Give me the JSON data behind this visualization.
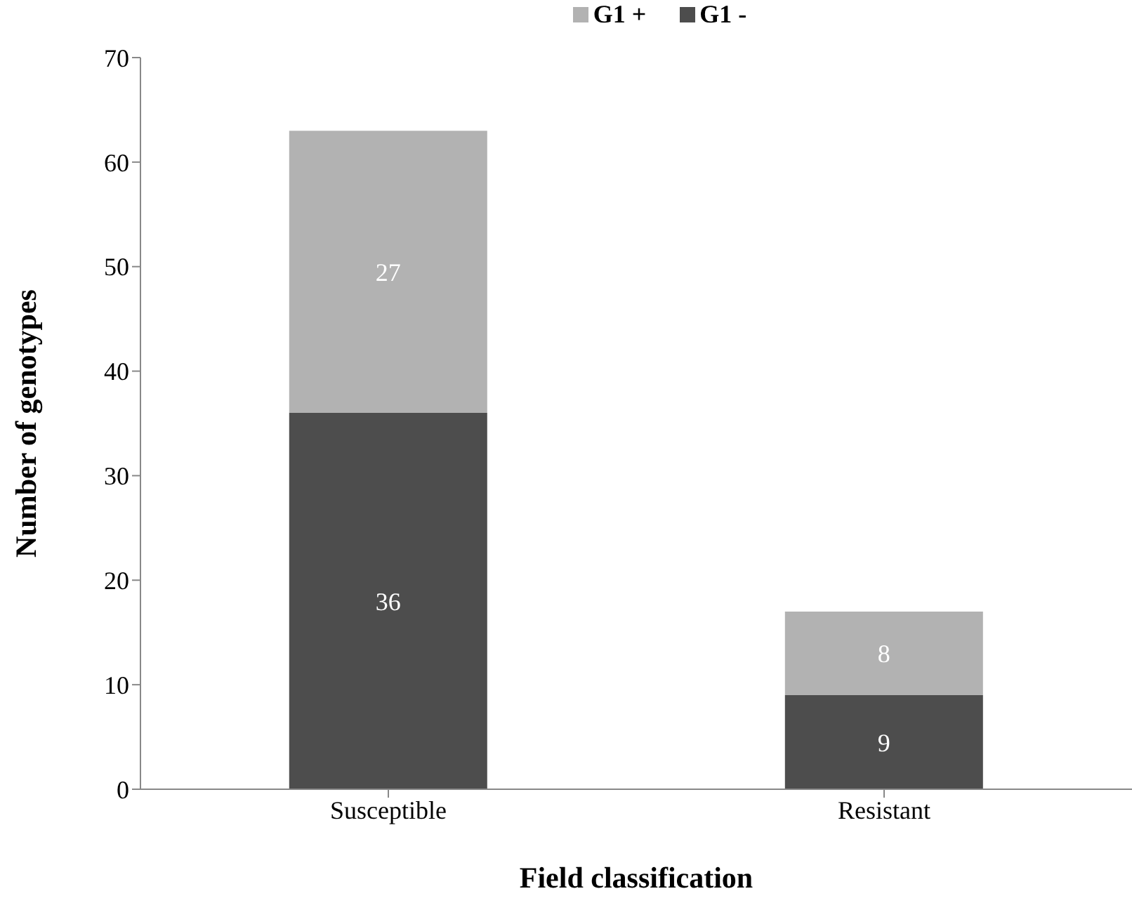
{
  "chart_data": {
    "type": "bar",
    "stacked": true,
    "xlabel": "Field classification",
    "ylabel": "Number of genotypes",
    "categories": [
      "Susceptible",
      "Resistant"
    ],
    "series": [
      {
        "name": "G1 -",
        "color": "#4d4d4d",
        "values": [
          36,
          9
        ]
      },
      {
        "name": "G1 +",
        "color": "#b2b2b2",
        "values": [
          27,
          8
        ]
      }
    ],
    "ylim": [
      0,
      70
    ],
    "yticks": [
      0,
      10,
      20,
      30,
      40,
      50,
      60,
      70
    ],
    "grid": false,
    "legend": "top",
    "data_labels": true
  }
}
